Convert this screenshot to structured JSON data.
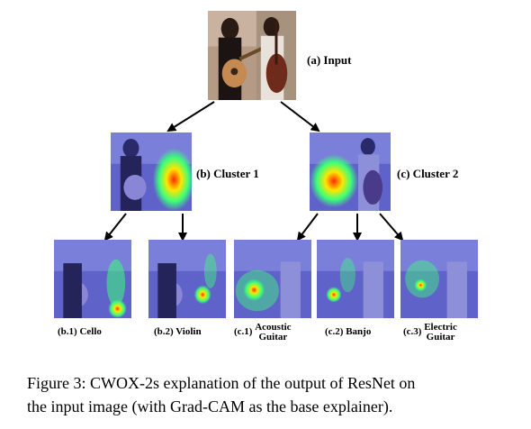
{
  "figure": {
    "input_label": "(a) Input",
    "cluster1_label": "(b) Cluster 1",
    "cluster2_label": "(c) Cluster 2",
    "sub_labels": {
      "b1": "(b.1) Cello",
      "b2": "(b.2) Violin",
      "c1_prefix": "(c.1)",
      "c1_line1": "Acoustic",
      "c1_line2": "Guitar",
      "c2": "(c.2) Banjo",
      "c3_prefix": "(c.3)",
      "c3_line1": "Electric",
      "c3_line2": "Guitar"
    }
  },
  "caption": {
    "line1": "Figure 3: CWOX-2s explanation of the output of ResNet on",
    "line2": "the input image (with Grad-CAM as the base explainer)."
  },
  "colors": {
    "tint": "#6a6fd8",
    "heat_red": "#ff2a00",
    "heat_yellow": "#ffe600",
    "heat_green": "#3bff7a",
    "arrow": "#000000"
  }
}
